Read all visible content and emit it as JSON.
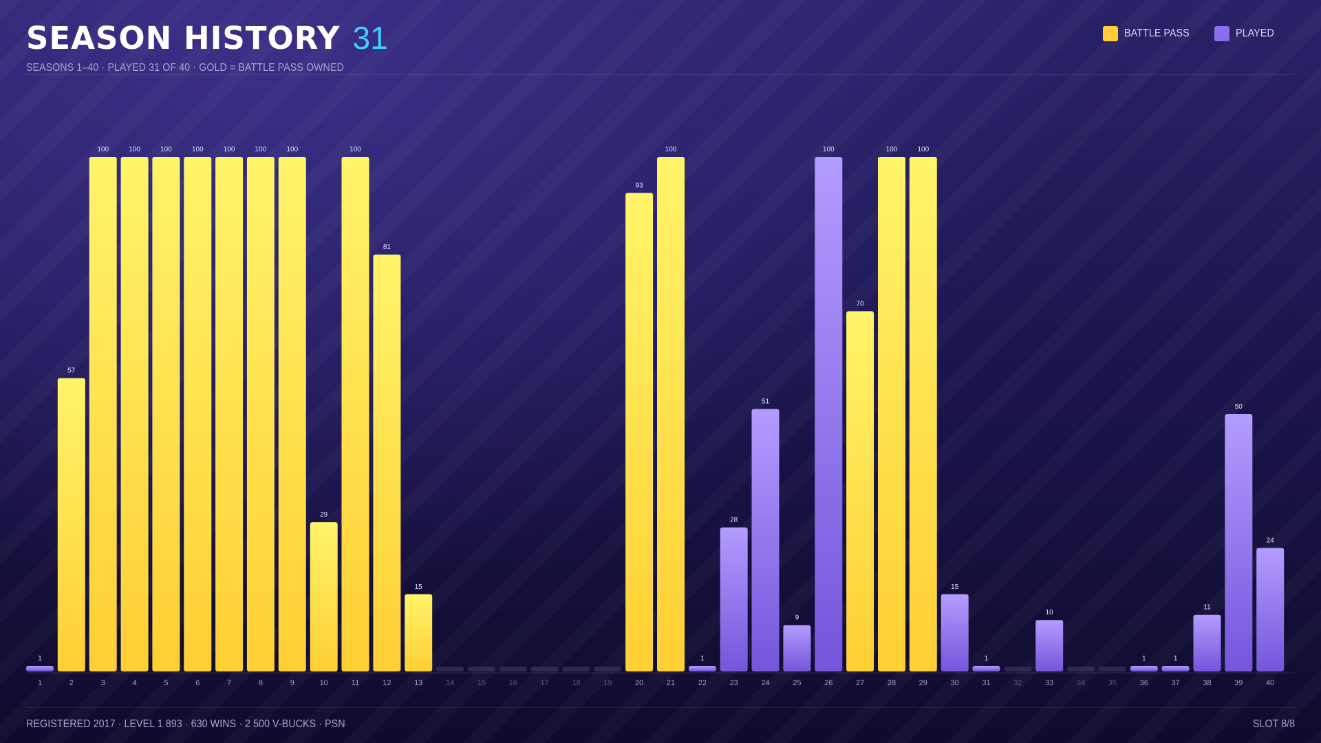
{
  "header": {
    "title": "SEASON HISTORY",
    "count": "31",
    "subtitle": "SEASONS 1–40 · PLAYED 31 OF 40 · GOLD = BATTLE PASS OWNED"
  },
  "legend": [
    {
      "label": "BATTLE PASS",
      "color": "#ffd23f"
    },
    {
      "label": "PLAYED",
      "color": "#8c6df0"
    }
  ],
  "colors": {
    "battle_pass": "#ffd23f",
    "played": "#8c6df0",
    "accent": "#3fd0ff",
    "empty": "#3a345c"
  },
  "chart_data": {
    "type": "bar",
    "categories": [
      "1",
      "2",
      "3",
      "4",
      "5",
      "6",
      "7",
      "8",
      "9",
      "10",
      "11",
      "12",
      "13",
      "14",
      "15",
      "16",
      "17",
      "18",
      "19",
      "20",
      "21",
      "22",
      "23",
      "24",
      "25",
      "26",
      "27",
      "28",
      "29",
      "30",
      "31",
      "32",
      "33",
      "34",
      "35",
      "36",
      "37",
      "38",
      "39",
      "40"
    ],
    "values": [
      1,
      57,
      100,
      100,
      100,
      100,
      100,
      100,
      100,
      29,
      100,
      81,
      15,
      0,
      0,
      0,
      0,
      0,
      0,
      93,
      100,
      1,
      28,
      51,
      9,
      100,
      70,
      100,
      100,
      15,
      1,
      0,
      10,
      0,
      0,
      1,
      1,
      11,
      50,
      24
    ],
    "battle_pass": [
      false,
      true,
      true,
      true,
      true,
      true,
      true,
      true,
      true,
      true,
      true,
      true,
      true,
      false,
      false,
      false,
      false,
      false,
      false,
      true,
      true,
      false,
      false,
      false,
      false,
      false,
      true,
      true,
      true,
      false,
      false,
      false,
      false,
      false,
      false,
      false,
      false,
      false,
      false,
      false
    ],
    "played": [
      true,
      true,
      true,
      true,
      true,
      true,
      true,
      true,
      true,
      true,
      true,
      true,
      true,
      false,
      false,
      false,
      false,
      false,
      false,
      true,
      true,
      true,
      true,
      true,
      true,
      true,
      true,
      true,
      true,
      true,
      true,
      false,
      true,
      false,
      false,
      true,
      true,
      true,
      true,
      true
    ],
    "ylim": [
      0,
      100
    ],
    "grid": false,
    "legend_position": "top-right"
  },
  "footer": {
    "text": "REGISTERED 2017 · LEVEL 1 893 · 630 WINS · 2 500 V-BUCKS · PSN",
    "slot": "SLOT 8/8"
  }
}
